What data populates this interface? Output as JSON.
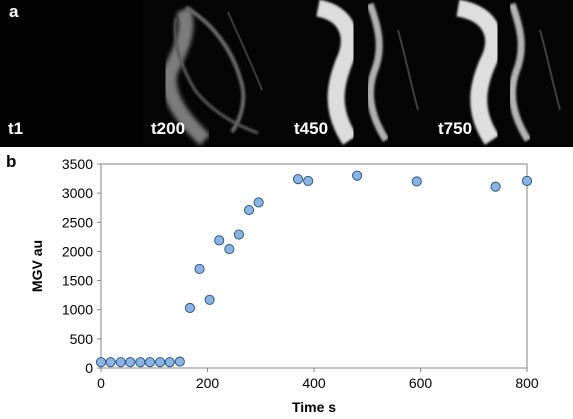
{
  "panel_a": {
    "letter": "a",
    "frames": [
      {
        "label": "t1"
      },
      {
        "label": "t200"
      },
      {
        "label": "t450"
      },
      {
        "label": "t750"
      }
    ]
  },
  "panel_b": {
    "letter": "b"
  },
  "colors": {
    "marker_fill": "#8db3e2",
    "marker_stroke": "#1f4e79",
    "axis": "#868686"
  },
  "chart_data": {
    "type": "scatter",
    "title": "",
    "xlabel": "Time s",
    "ylabel": "MGV au",
    "xlim": [
      0,
      800
    ],
    "ylim": [
      0,
      3500
    ],
    "xticks": [
      0,
      200,
      400,
      600,
      800
    ],
    "yticks": [
      0,
      500,
      1000,
      1500,
      2000,
      2500,
      3000,
      3500
    ],
    "grid": false,
    "series": [
      {
        "points": [
          [
            0,
            100
          ],
          [
            18,
            100
          ],
          [
            37,
            100
          ],
          [
            55,
            100
          ],
          [
            74,
            100
          ],
          [
            92,
            100
          ],
          [
            111,
            100
          ],
          [
            129,
            100
          ],
          [
            148,
            110
          ],
          [
            167,
            1030
          ],
          [
            185,
            1700
          ],
          [
            204,
            1170
          ],
          [
            222,
            2190
          ],
          [
            241,
            2040
          ],
          [
            259,
            2290
          ],
          [
            278,
            2710
          ],
          [
            296,
            2840
          ],
          [
            370,
            3240
          ],
          [
            389,
            3210
          ],
          [
            481,
            3300
          ],
          [
            593,
            3200
          ],
          [
            741,
            3110
          ],
          [
            800,
            3210
          ]
        ]
      }
    ]
  }
}
